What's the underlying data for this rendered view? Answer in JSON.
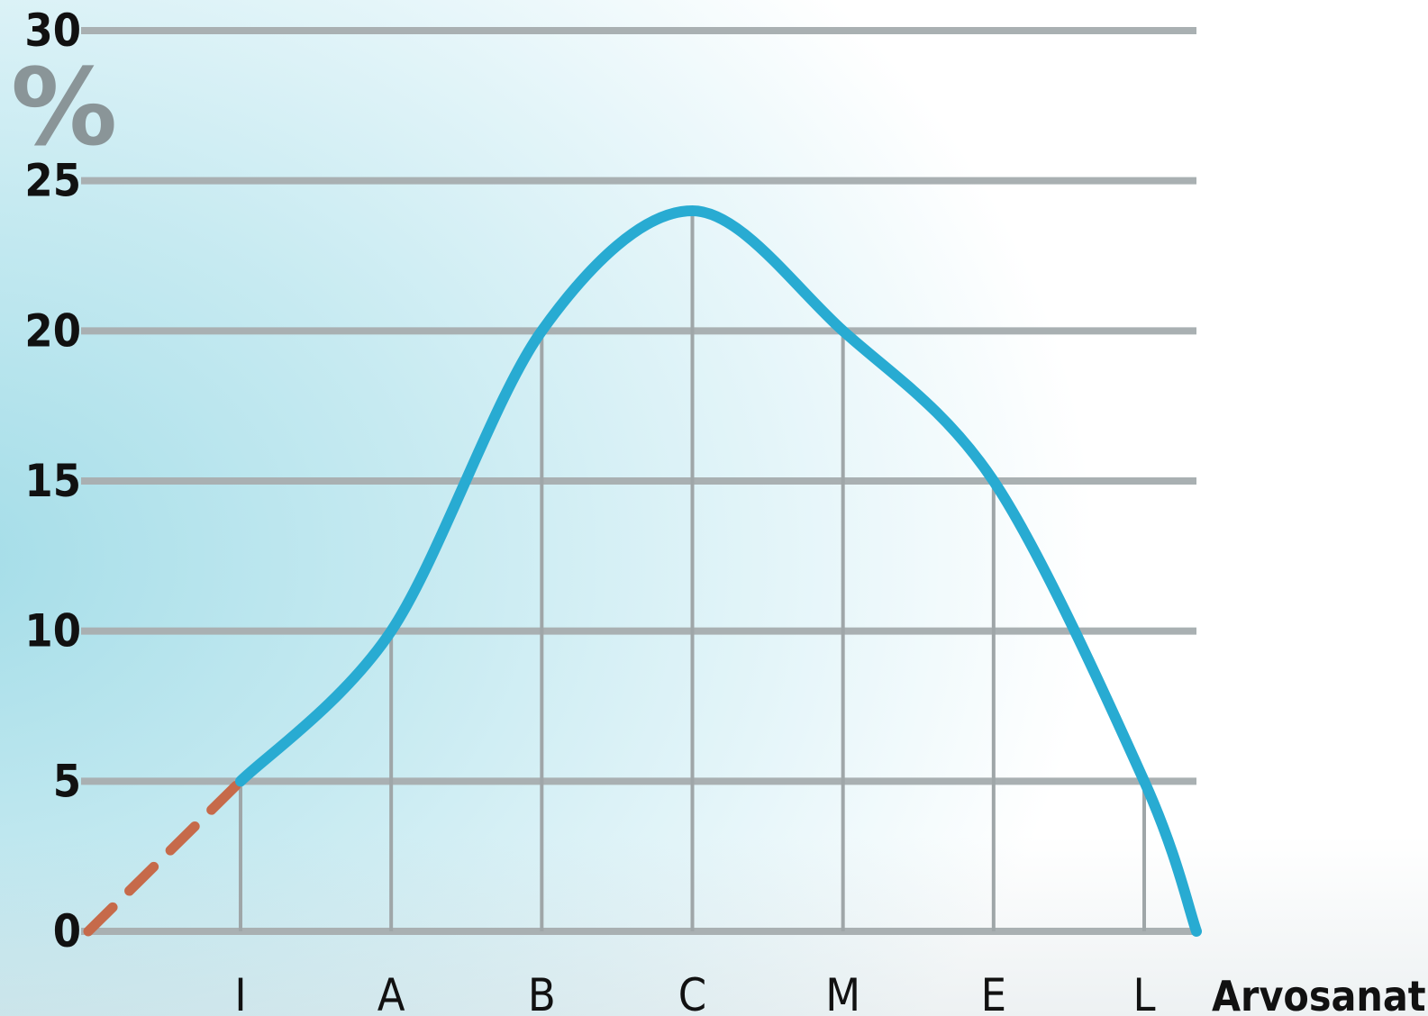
{
  "chart_data": {
    "type": "line",
    "title": "",
    "xlabel": "Arvosanat",
    "ylabel": "%",
    "x_categories": [
      "I",
      "A",
      "B",
      "C",
      "M",
      "E",
      "L"
    ],
    "x_start_value": 0,
    "x_end_value": 0,
    "ylim": [
      0,
      30
    ],
    "yticks": [
      0,
      5,
      10,
      15,
      20,
      25,
      30
    ],
    "grid": true,
    "series": [
      {
        "values": [
          5,
          10,
          20,
          24,
          20,
          15,
          5
        ],
        "color": "#28abd2",
        "style": "solid"
      }
    ],
    "extrapolation": {
      "from": [
        0,
        0
      ],
      "to": [
        "I",
        5
      ],
      "color": "#c66a4a",
      "style": "dashed"
    }
  }
}
